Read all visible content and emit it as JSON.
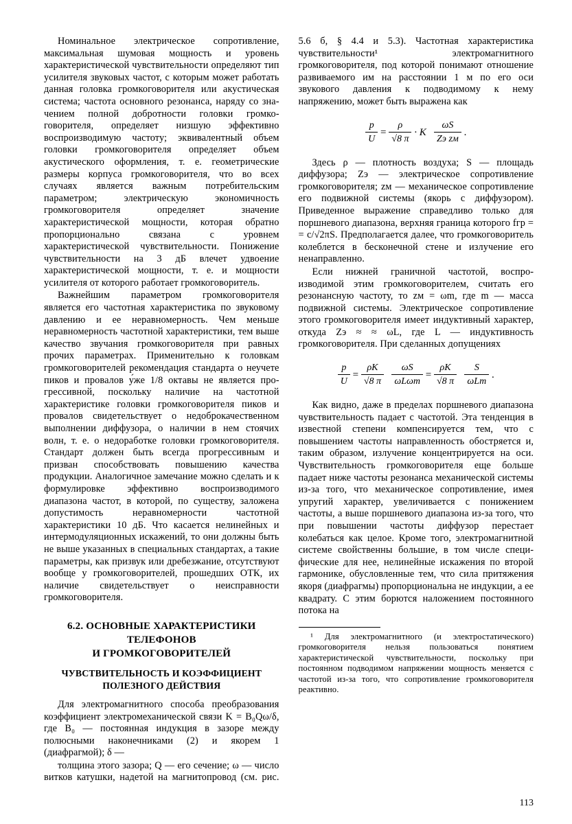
{
  "page_number": "113",
  "left_column": {
    "para1": "Номинальное электрическое сопротивле­ние, максимальная шумовая мощность и уро­вень характеристической чувствительности определяют тип усилителя звуковых частот, с которым может работать данная головка громкоговорителя или акустическая система; частота основного резонанса, наряду со зна­чением полной добротности головки громко­говорителя, определяет низшую эффективно воспроизводимую частоту; эквивалентный объ­ем головки громкоговорителя определяет объ­ем акустического оформления, т. е. геометри­ческие размеры корпуса громкоговорителя, что во всех случаях является важным потре­бительским параметром; электрическую эконо­мичность громкоговорителя определяет зна­чение характеристической мощности, кото­рая обратно пропорционально связана с уровнем характеристической чувствитель­ности. Понижение чувствительности на 3 дБ влечет удвоение характеристической мощнос­ти, т. е. и мощности усилителя от которого работает громкоговоритель.",
    "para2": "Важнейшим параметром громкоговорителя является его частотная характеристика по звуковому давлению и ее неравномерность. Чем меньше неравномерность частотной харак­теристики, тем выше качество звучания гром­коговорителя при равных прочих параметрах. Применительно к головкам громкоговорителей рекомендация стандарта о неучете пиков и провалов у́же 1/8 октавы не является про­грессивной, поскольку наличие на частотной характеристике головки громкоговорителя пиков и провалов свидетельствует о недобро­качественном выполнении диффузора, о на­личии в нем стоячих волн, т. е. о недоработке головки громкоговорителя. Стандарт должен быть всегда прогрессивным и призван спо­собствовать повышению качества продукции. Аналогичное замечание можно сделать и к формулировке эффективно воспроизводимого диапазона частот, в которой, по существу, за­ложена допустимость неравномерности частот­ной характеристики 10 дБ. Что касается не­линейных и интермодуляционных искажений, то они должны быть не выше указанных в специальных стандартах, а такие параметры, как призвук или дребезжание, отсутствуют во­обще у громкоговорителей, прошедших ОТК, их наличие свидетельствует о неисправности громкоговорителя.",
    "section_title_1": "6.2. ОСНОВНЫЕ ХАРАКТЕРИСТИКИ ТЕЛЕФОНОВ",
    "section_title_2": "И ГРОМКОГОВОРИТЕЛЕЙ",
    "subsection_title_1": "ЧУВСТВИТЕЛЬНОСТЬ И КОЭФФИЦИЕНТ",
    "subsection_title_2": "ПОЛЕЗНОГО ДЕЙСТВИЯ",
    "para3": "Для электромагнитного способа преобра­зования коэффициент электромеханической связи K = B₀Qω/δ, где B₀ — постоянная ин­дукция в зазоре между полюсными наконеч­никами (2) и якорем 1 (диафрагмой); δ —"
  },
  "right_column": {
    "para1": "толщина этого зазора; Q — его сечение; ω — число витков катушки, надетой на магнито­провод (см. рис. 5.6 б, § 4.4 и 5.3). Частотная характеристика чувствительности¹ электро­магнитного громкоговорителя, под которой понимают отношение развиваемого им на рас­стоянии 1 м по его оси звукового давления к подводимому к нему напряжению, может быть выражена как",
    "para2": "Здесь ρ — плотность воздуха; S — пло­щадь диффузора; Zэ — электрическое сопро­тивление громкоговорителя; zм — механичес­кое сопротивление его подвижной системы (якорь с диффузором). Приведенное выра­жение справедливо только для поршневого диапазона, верхняя граница которого fгр = = c/√2πS. Предполагается далее, что гром­коговоритель колеблется в бесконечной сте­не и излучение его ненаправленно.",
    "para3": "Если нижней граничной частотой, воспро­изводимой этим громкоговорителем, считать его резонансную частоту, то zм = ωm, где m — масса подвижной системы. Электричес­кое сопротивление этого громкоговорителя имеет индуктивный характер, откуда Zэ ≈ ≈ ωL, где L — индуктивность громкоговори­теля. При сделанных допущениях",
    "para4": "Как видно, даже в пределах поршневого диапазона чувствительность падает с частотой. Эта тенденция в известной степени компен­сируется тем, что с повышением частоты на­правленность обостряется и, таким образом, излучение концентрируется на оси. Чувст­вительность громкоговорителя еще больше падает ниже частоты резонанса механической системы из-за того, что механическое сопро­тивление, имея упругий характер, увеличи­вается с понижением частоты, а выше порш­невого диапазона из-за того, что при повыше­нии частоты диффузор перестает колебаться как целое. Кроме того, электромагнитной сис­теме свойственны большие, в том числе специ­фические для нее, нелинейные искажения по второй гармонике, обусловленные тем, что сила притяжения якоря (диафрагмы) пропор­циональна не индукции, а ее квадрату. С этим борются наложением постоянного потока на",
    "footnote": "¹ Для электромагнитного (и электростати­ческого) громкоговорителя нельзя пользо­ваться понятием характеристической чувст­вительности, поскольку при постоянном под­водимом напряжении мощность меняется с частотой из-за того, что сопротивление громкоговорителя реактивно."
  },
  "formulas": {
    "f1_num1": "p",
    "f1_den1": "U",
    "f1_num2": "ρ",
    "f1_den2": "√8 π",
    "f1_mid": "· K",
    "f1_num3": "ωS",
    "f1_den3": "Zэ zм",
    "f2_num1": "p",
    "f2_den1": "U",
    "f2_num2": "ρK",
    "f2_den2": "√8 π",
    "f2_num3": "ωS",
    "f2_den3": "ωLωm",
    "f2_num4": "ρK",
    "f2_den4": "√8 π",
    "f2_num5": "S",
    "f2_den5": "ωLm"
  }
}
